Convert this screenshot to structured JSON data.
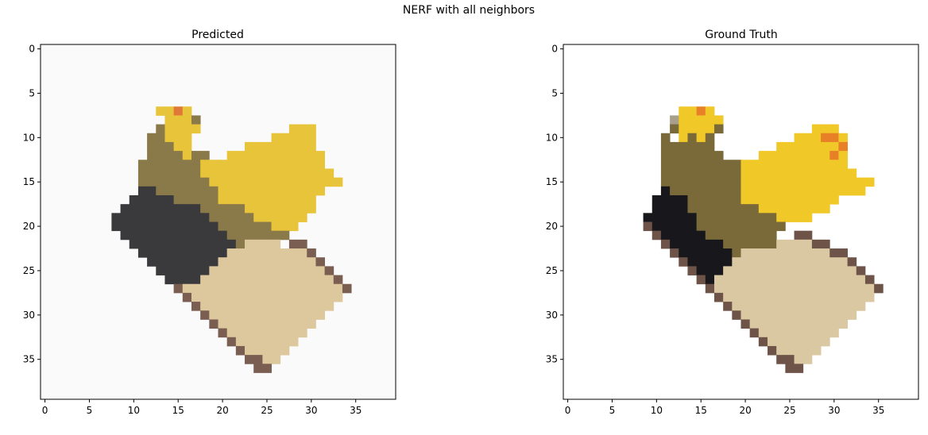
{
  "figure": {
    "title": "NERF with all neighbors"
  },
  "chart_data": [
    {
      "type": "heatmap",
      "title": "Predicted",
      "grid": false,
      "xlim": [
        -0.5,
        39.5
      ],
      "ylim": [
        39.5,
        -0.5
      ],
      "xticks": [
        0,
        5,
        10,
        15,
        20,
        25,
        30,
        35
      ],
      "yticks": [
        0,
        5,
        10,
        15,
        20,
        25,
        30,
        35
      ],
      "xtick_labels": [
        "0",
        "5",
        "10",
        "15",
        "20",
        "25",
        "30",
        "35"
      ],
      "ytick_labels": [
        "0",
        "5",
        "10",
        "15",
        "20",
        "25",
        "30",
        "35"
      ],
      "palette": [
        "#fafafa",
        "#3a3a3c",
        "#8a7a4a",
        "#e8c43a",
        "#dcc89c",
        "#7a5e52",
        "#b8a88a",
        "#e07838"
      ],
      "rows": [
        "0000000000000000000000000000000000000000",
        "0000000000000000000000000000000000000000",
        "0000000000000000000000000000000000000000",
        "0000000000000000000000000000000000000000",
        "0000000000000000000000000000000000000000",
        "0000000000000000000000000000000000000000",
        "0000000000000000000000000000000000000000",
        "0000000000000337300000000000000000000000",
        "0000000000000033320000000000000000000000",
        "0000000000000233330000000000333000000000",
        "0000000000002233300000000033333000000000",
        "0000000000002223300000033333333000000000",
        "0000000000002222322003333333333300000000",
        "0000000000022222223333333333333300000000",
        "0000000000022222223333333333333330000000",
        "0000000000022222222333333333333333000000",
        "0000000000011222222233333333333300000000",
        "0000000000111112222233333333333000000000",
        "0000000001111111112222233333333000000000",
        "0000000011111111111222223333330000000000",
        "0000000011111111111122222233300000000000",
        "0000000001111111111112222222000000000000",
        "0000000000111111111111244440550000000000",
        "0000000000011111111114444444445000000000",
        "0000000000001111111144444444444500000000",
        "0000000000000111111444444444444450000000",
        "0000000000000011114444444444444445000000",
        "0000000000000005444444444444444444500000",
        "0000000000000000544444444444444444000000",
        "0000000000000000054444444444444440000000",
        "0000000000000000005444444444444400000000",
        "0000000000000000000544444444444000000000",
        "0000000000000000000054444444440000000000",
        "0000000000000000000005444444400000000000",
        "0000000000000000000000544444000000000000",
        "0000000000000000000000055440000000000000",
        "0000000000000000000000005500000000000000",
        "0000000000000000000000000000000000000000",
        "0000000000000000000000000000000000000000",
        "0000000000000000000000000000000000000000"
      ]
    },
    {
      "type": "heatmap",
      "title": "Ground Truth",
      "grid": false,
      "xlim": [
        -0.5,
        39.5
      ],
      "ylim": [
        39.5,
        -0.5
      ],
      "xticks": [
        0,
        5,
        10,
        15,
        20,
        25,
        30,
        35
      ],
      "yticks": [
        0,
        5,
        10,
        15,
        20,
        25,
        30,
        35
      ],
      "xtick_labels": [
        "0",
        "5",
        "10",
        "15",
        "20",
        "25",
        "30",
        "35"
      ],
      "ytick_labels": [
        "0",
        "5",
        "10",
        "15",
        "20",
        "25",
        "30",
        "35"
      ],
      "palette": [
        "#ffffff",
        "#18181c",
        "#7a6a3a",
        "#f0c828",
        "#dac8a2",
        "#6e5448",
        "#a8a08a",
        "#e88028"
      ],
      "rows": [
        "0000000000000000000000000000000000000000",
        "0000000000000000000000000000000000000000",
        "0000000000000000000000000000000000000000",
        "0000000000000000000000000000000000000000",
        "0000000000000000000000000000000000000000",
        "0000000000000000000000000000000000000000",
        "0000000000000000000000000000000000000000",
        "0000000000000337300000000000000000000000",
        "0000000000006333330000000000000000000000",
        "0000000000002333320000000000333000000000",
        "0000000000020323200000000033377300000000",
        "0000000000022222200000003333333700000000",
        "0000000000022222220000333333337300000000",
        "0000000000022222222233333333333300000000",
        "0000000000022222222233333333333330000000",
        "0000000000022222222233333333333333300000",
        "0000000000012222222233333333333333000000",
        "0000000000111122222233333333333000000000",
        "0000000000111122222222333333330000000000",
        "0000000001111112222222223333000000000000",
        "0000000005111112222222222000000000000000",
        "0000000000511111222222220055000000000000",
        "0000000000051111112222224444550000000000",
        "0000000000005111111244444444445500000000",
        "0000000000000511111444444444444450000000",
        "0000000000000051114444444444444445000000",
        "0000000000000005144444444444444444500000",
        "0000000000000000544444444444444444450000",
        "0000000000000000054444444444444444400000",
        "0000000000000000005444444444444444000000",
        "0000000000000000000544444444444440000000",
        "0000000000000000000054444444444400000000",
        "0000000000000000000005444444444000000000",
        "0000000000000000000000544444440000000000",
        "0000000000000000000000054444400000000000",
        "0000000000000000000000005544000000000000",
        "0000000000000000000000000550000000000000",
        "0000000000000000000000000000000000000000",
        "0000000000000000000000000000000000000000",
        "0000000000000000000000000000000000000000"
      ]
    }
  ]
}
